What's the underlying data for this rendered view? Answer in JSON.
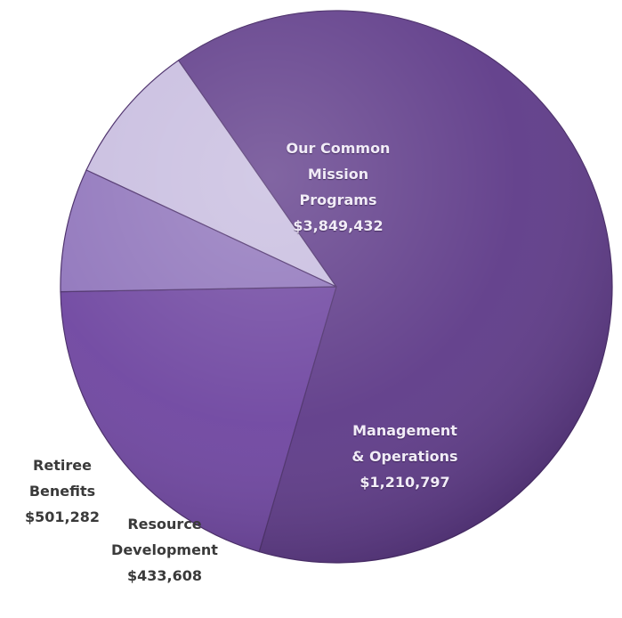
{
  "chart_data": {
    "type": "pie",
    "title": "",
    "slices": [
      {
        "label_lines": [
          "Our Common",
          "Mission",
          "Programs"
        ],
        "value_text": "$3,849,432",
        "value": 3849432,
        "color": "#5e3a88"
      },
      {
        "label_lines": [
          "Management",
          "& Operations"
        ],
        "value_text": "$1,210,797",
        "value": 1210797,
        "color": "#6e45a0"
      },
      {
        "label_lines": [
          "Resource",
          "Development"
        ],
        "value_text": "$433,608",
        "value": 433608,
        "color": "#8f74bb"
      },
      {
        "label_lines": [
          "Retiree",
          "Benefits"
        ],
        "value_text": "$501,282",
        "value": 501282,
        "color": "#c7bcdf"
      }
    ],
    "legend": "none"
  }
}
